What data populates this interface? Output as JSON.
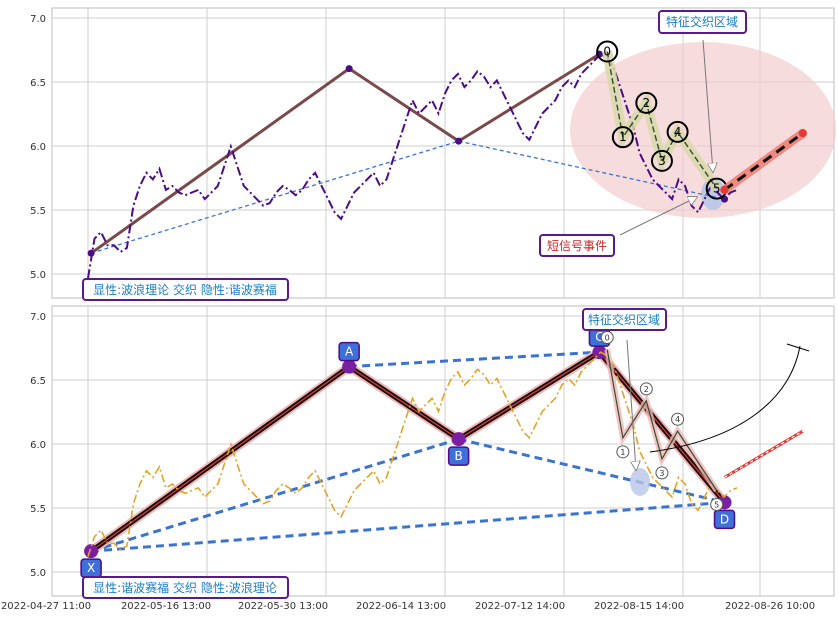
{
  "chart_data": [
    {
      "type": "line",
      "panel": "top",
      "ylim": [
        4.9,
        7.1
      ],
      "y_ticks": [
        "5.0",
        "5.5",
        "6.0",
        "6.5",
        "7.0"
      ],
      "grid": true,
      "series": [
        {
          "values": [
            5.05,
            5.35,
            5.4,
            5.3,
            5.3,
            5.25,
            5.28,
            5.6,
            5.75,
            5.85,
            5.8,
            5.88,
            5.72,
            5.75,
            5.7,
            5.68,
            5.7,
            5.72,
            5.65,
            5.7,
            5.75,
            5.9,
            6.05,
            5.9,
            5.75,
            5.7,
            5.65,
            5.6,
            5.62,
            5.7,
            5.75,
            5.72,
            5.68,
            5.72,
            5.8,
            5.85,
            5.75,
            5.65,
            5.55,
            5.5,
            5.6,
            5.7,
            5.75,
            5.8,
            5.85,
            5.75,
            5.8,
            5.95,
            6.1,
            6.25,
            6.4,
            6.3,
            6.35,
            6.4,
            6.3,
            6.45,
            6.55,
            6.6,
            6.5,
            6.55,
            6.62,
            6.58,
            6.5,
            6.55,
            6.45,
            6.35,
            6.25,
            6.15,
            6.1,
            6.2,
            6.3,
            6.35,
            6.4,
            6.5,
            6.55,
            6.5,
            6.6,
            6.65,
            6.7,
            6.75,
            6.72,
            6.65,
            6.5,
            6.35,
            6.2,
            6.0,
            5.9,
            5.8,
            5.75,
            5.7,
            5.65,
            5.8,
            5.75,
            5.6,
            5.55,
            5.65,
            5.75,
            5.7,
            5.65,
            5.7,
            5.72
          ]
        }
      ],
      "harmonic_points": [
        {
          "x": 0.05,
          "y": 5.24
        },
        {
          "x": 0.38,
          "y": 6.64
        },
        {
          "x": 0.52,
          "y": 6.09
        },
        {
          "x": 0.7,
          "y": 6.75
        },
        {
          "x": 0.86,
          "y": 5.65
        }
      ],
      "wave_points": [
        {
          "label": "0",
          "x": 0.71,
          "y": 6.77
        },
        {
          "label": "1",
          "x": 0.73,
          "y": 6.12
        },
        {
          "label": "2",
          "x": 0.76,
          "y": 6.38
        },
        {
          "label": "3",
          "x": 0.78,
          "y": 5.94
        },
        {
          "label": "4",
          "x": 0.8,
          "y": 6.16
        },
        {
          "label": "5",
          "x": 0.85,
          "y": 5.73
        }
      ],
      "projection": {
        "from": {
          "x": 0.86,
          "y": 5.72
        },
        "to": {
          "x": 0.96,
          "y": 6.15
        }
      },
      "annotations": {
        "feature_zone": "特征交织区域",
        "short_signal": "短信号事件",
        "overlay": "显性:波浪理论 交织 隐性:谐波赛福"
      }
    },
    {
      "type": "line",
      "panel": "bottom",
      "ylim": [
        4.9,
        7.1
      ],
      "y_ticks": [
        "5.0",
        "5.5",
        "6.0",
        "6.5",
        "7.0"
      ],
      "x_ticks": [
        "2022-04-27 11:00",
        "2022-05-16 13:00",
        "2022-05-30 13:00",
        "2022-06-14 13:00",
        "2022-07-12 14:00",
        "2022-08-15 14:00",
        "2022-08-26 10:00"
      ],
      "grid": true,
      "series": [
        {
          "values": [
            5.2,
            5.35,
            5.4,
            5.3,
            5.3,
            5.25,
            5.28,
            5.6,
            5.75,
            5.85,
            5.8,
            5.88,
            5.72,
            5.75,
            5.7,
            5.68,
            5.7,
            5.72,
            5.65,
            5.7,
            5.75,
            5.9,
            6.05,
            5.9,
            5.75,
            5.7,
            5.65,
            5.6,
            5.62,
            5.7,
            5.75,
            5.72,
            5.68,
            5.72,
            5.8,
            5.85,
            5.75,
            5.65,
            5.55,
            5.5,
            5.6,
            5.7,
            5.75,
            5.8,
            5.85,
            5.75,
            5.8,
            5.95,
            6.1,
            6.25,
            6.4,
            6.3,
            6.35,
            6.4,
            6.3,
            6.45,
            6.55,
            6.6,
            6.5,
            6.55,
            6.62,
            6.58,
            6.5,
            6.55,
            6.45,
            6.35,
            6.25,
            6.15,
            6.1,
            6.2,
            6.3,
            6.35,
            6.4,
            6.5,
            6.55,
            6.5,
            6.6,
            6.65,
            6.7,
            6.75,
            6.72,
            6.65,
            6.5,
            6.35,
            6.2,
            6.0,
            5.9,
            5.8,
            5.75,
            5.7,
            5.65,
            5.8,
            5.75,
            5.6,
            5.55,
            5.65,
            5.75,
            5.7,
            5.65,
            5.7,
            5.72
          ]
        }
      ],
      "pattern_points": [
        {
          "label": "X",
          "x": 0.05,
          "y": 5.24
        },
        {
          "label": "A",
          "x": 0.38,
          "y": 6.64
        },
        {
          "label": "B",
          "x": 0.52,
          "y": 6.09
        },
        {
          "label": "C",
          "x": 0.7,
          "y": 6.75
        },
        {
          "label": "D",
          "x": 0.86,
          "y": 5.61
        }
      ],
      "wave_points": [
        {
          "label": "0",
          "x": 0.71,
          "y": 6.77
        },
        {
          "label": "1",
          "x": 0.73,
          "y": 6.1
        },
        {
          "label": "2",
          "x": 0.76,
          "y": 6.38
        },
        {
          "label": "3",
          "x": 0.78,
          "y": 5.94
        },
        {
          "label": "4",
          "x": 0.8,
          "y": 6.15
        },
        {
          "label": "5",
          "x": 0.85,
          "y": 5.7
        }
      ],
      "projection": {
        "from": {
          "x": 0.86,
          "y": 5.8
        },
        "to": {
          "x": 0.96,
          "y": 6.15
        }
      },
      "annotations": {
        "feature_zone": "特征交织区域",
        "overlay": "显性:谐波赛福 交织 隐性:波浪理论"
      }
    }
  ]
}
